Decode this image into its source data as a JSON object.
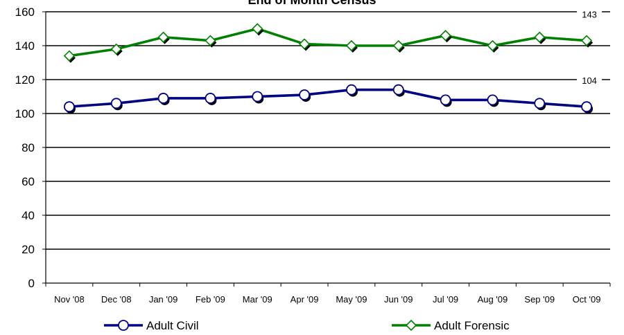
{
  "chart_data": {
    "type": "line",
    "title": "End of Month Census",
    "categories": [
      "Nov '08",
      "Dec '08",
      "Jan '09",
      "Feb '09",
      "Mar '09",
      "Apr '09",
      "May '09",
      "Jun '09",
      "Jul '09",
      "Aug '09",
      "Sep '09",
      "Oct '09"
    ],
    "ylim": [
      0,
      160
    ],
    "yticks": [
      0,
      20,
      40,
      60,
      80,
      100,
      120,
      140,
      160
    ],
    "grid": true,
    "legend_position": "bottom",
    "series": [
      {
        "name": "Adult Civil",
        "values": [
          104,
          106,
          109,
          109,
          110,
          111,
          114,
          114,
          108,
          108,
          106,
          104
        ],
        "color": "#000080",
        "marker": "circle",
        "end_label": "104"
      },
      {
        "name": "Adult Forensic",
        "values": [
          134,
          138,
          145,
          143,
          150,
          141,
          140,
          140,
          146,
          140,
          145,
          143
        ],
        "color": "#008000",
        "marker": "diamond",
        "end_label": "143"
      }
    ]
  }
}
